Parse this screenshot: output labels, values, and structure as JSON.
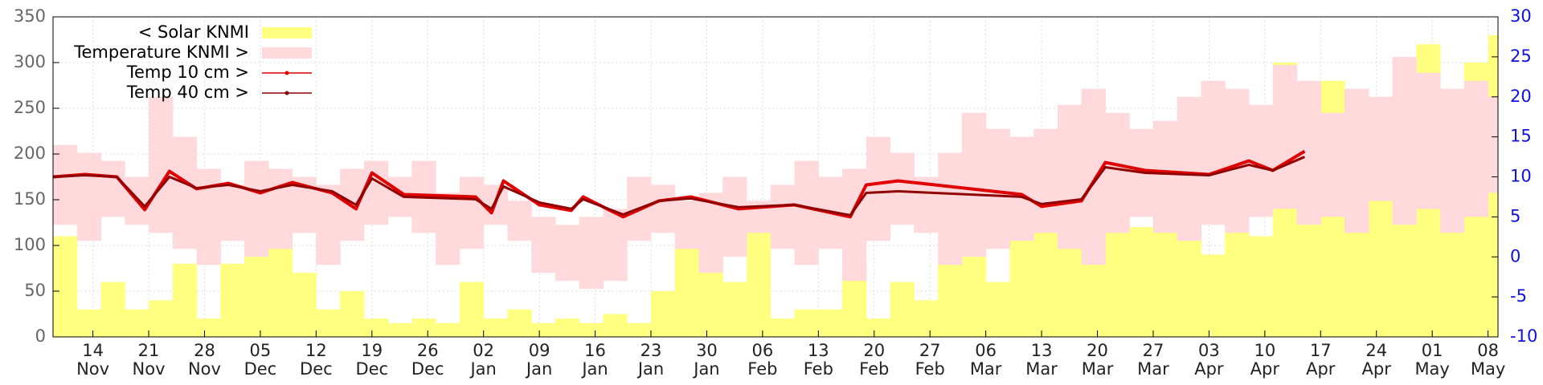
{
  "chart_data": {
    "type": "combo",
    "xlim": [
      -5,
      176.25
    ],
    "ylim": [
      0,
      350
    ],
    "yticks": [
      0,
      50,
      100,
      150,
      200,
      250,
      300,
      350
    ],
    "y2lim": [
      -10,
      30
    ],
    "y2ticks": [
      -10,
      -5,
      0,
      5,
      10,
      15,
      20,
      25,
      30
    ],
    "grid": true,
    "legend": "top-left",
    "xticks": [
      {
        "value": 0,
        "label": "14\nNov"
      },
      {
        "value": 7,
        "label": "21\nNov"
      },
      {
        "value": 14,
        "label": "28\nNov"
      },
      {
        "value": 21,
        "label": "05\nDec"
      },
      {
        "value": 28,
        "label": "12\nDec"
      },
      {
        "value": 35,
        "label": "19\nDec"
      },
      {
        "value": 42,
        "label": "26\nDec"
      },
      {
        "value": 49,
        "label": "02\nJan"
      },
      {
        "value": 56,
        "label": "09\nJan"
      },
      {
        "value": 63,
        "label": "16\nJan"
      },
      {
        "value": 70,
        "label": "23\nJan"
      },
      {
        "value": 77,
        "label": "30\nJan"
      },
      {
        "value": 84,
        "label": "06\nFeb"
      },
      {
        "value": 91,
        "label": "13\nFeb"
      },
      {
        "value": 98,
        "label": "20\nFeb"
      },
      {
        "value": 105,
        "label": "27\nFeb"
      },
      {
        "value": 112,
        "label": "06\nMar"
      },
      {
        "value": 119,
        "label": "13\nMar"
      },
      {
        "value": 126,
        "label": "20\nMar"
      },
      {
        "value": 133,
        "label": "27\nMar"
      },
      {
        "value": 140,
        "label": "03\nApr"
      },
      {
        "value": 147,
        "label": "10\nApr"
      },
      {
        "value": 154,
        "label": "17\nApr"
      },
      {
        "value": 161,
        "label": "24\nApr"
      },
      {
        "value": 168,
        "label": "01\nMay"
      },
      {
        "value": 175,
        "label": "08\nMay"
      }
    ],
    "series": [
      {
        "name": "< Solar KNMI",
        "type": "bar",
        "color": "#ffff80",
        "x": [
          -5,
          -2,
          1,
          4,
          7,
          10,
          13,
          16,
          19,
          22,
          25,
          28,
          31,
          34,
          37,
          40,
          43,
          46,
          49,
          52,
          55,
          58,
          61,
          64,
          67,
          70,
          73,
          76,
          79,
          82,
          85,
          88,
          91,
          94,
          97,
          100,
          103,
          106,
          109,
          112,
          115,
          118,
          121,
          124,
          127,
          130,
          133,
          136,
          139,
          142,
          145,
          148,
          151,
          154,
          157,
          160,
          163,
          166,
          169,
          172,
          175
        ],
        "values": [
          110,
          30,
          60,
          30,
          40,
          80,
          20,
          80,
          90,
          100,
          70,
          30,
          50,
          20,
          15,
          20,
          15,
          60,
          20,
          30,
          15,
          20,
          15,
          25,
          15,
          50,
          100,
          90,
          60,
          130,
          20,
          30,
          30,
          80,
          20,
          60,
          40,
          130,
          100,
          60,
          140,
          150,
          120,
          170,
          180,
          120,
          200,
          150,
          90,
          250,
          110,
          300,
          140,
          280,
          240,
          260,
          240,
          320,
          150,
          300,
          330
        ]
      },
      {
        "name": "Temperature KNMI >",
        "type": "band",
        "color": "#ffd9dc",
        "axis": "y2",
        "x": [
          -5,
          -2,
          1,
          4,
          7,
          10,
          13,
          16,
          19,
          22,
          25,
          28,
          31,
          34,
          37,
          40,
          43,
          46,
          49,
          52,
          55,
          58,
          61,
          64,
          67,
          70,
          73,
          76,
          79,
          82,
          85,
          88,
          91,
          94,
          97,
          100,
          103,
          106,
          109,
          112,
          115,
          118,
          121,
          124,
          127,
          130,
          133,
          136,
          139,
          142,
          145,
          148,
          151,
          154,
          157,
          160,
          163,
          166,
          169,
          172,
          175
        ],
        "low": [
          4,
          2,
          5,
          4,
          3,
          1,
          -1,
          2,
          0,
          1,
          3,
          -1,
          2,
          4,
          5,
          3,
          -1,
          1,
          4,
          2,
          -2,
          -3,
          -4,
          -3,
          2,
          3,
          1,
          -2,
          0,
          3,
          1,
          -1,
          1,
          -3,
          2,
          4,
          3,
          -1,
          0,
          1,
          2,
          3,
          1,
          -1,
          3,
          5,
          3,
          2,
          4,
          3,
          5,
          6,
          4,
          5,
          3,
          7,
          4,
          6,
          3,
          5,
          8
        ],
        "high": [
          14,
          13,
          12,
          10,
          20,
          15,
          11,
          9,
          12,
          11,
          10,
          9,
          11,
          12,
          10,
          12,
          8,
          10,
          9,
          7,
          5,
          4,
          5,
          6,
          10,
          9,
          7,
          8,
          10,
          7,
          9,
          12,
          10,
          11,
          15,
          13,
          10,
          13,
          18,
          16,
          15,
          16,
          19,
          21,
          18,
          16,
          17,
          20,
          22,
          21,
          19,
          24,
          22,
          18,
          21,
          20,
          25,
          23,
          21,
          22,
          20
        ]
      },
      {
        "name": "Temp 10 cm >",
        "type": "line",
        "color": "#e00000",
        "axis": "y2",
        "x": [
          -5,
          -1,
          3,
          6.5,
          9.6,
          13,
          17,
          21,
          25,
          30,
          33,
          35,
          39,
          48,
          50,
          51.5,
          56,
          60,
          61.5,
          66.5,
          71,
          75,
          81,
          88,
          95,
          97,
          101,
          116.5,
          119,
          124,
          127,
          132,
          140,
          145,
          148,
          152
        ],
        "values": [
          10,
          10.3,
          10,
          5.9,
          10.7,
          8.5,
          9.2,
          8,
          9.3,
          8,
          6,
          10.5,
          7.8,
          7.5,
          5.5,
          9.5,
          6.5,
          5.8,
          7.5,
          5,
          7,
          7.5,
          6,
          6.5,
          5,
          9,
          9.5,
          7.8,
          6.3,
          7,
          11.8,
          10.8,
          10.3,
          12,
          10.8,
          13.2
        ]
      },
      {
        "name": "Temp 40 cm >",
        "type": "line",
        "color": "#900000",
        "axis": "y2",
        "x": [
          -5,
          -1,
          3,
          6.5,
          9.6,
          13,
          17,
          21,
          25,
          30,
          33,
          35,
          39,
          48,
          50,
          51.5,
          56,
          60,
          61.5,
          66.5,
          71,
          75,
          81,
          88,
          95,
          97,
          101,
          116.5,
          119,
          124,
          127,
          132,
          140,
          145,
          148,
          152
        ],
        "values": [
          10,
          10.2,
          10,
          6.3,
          10,
          8.6,
          9,
          8.2,
          9,
          8.2,
          6.5,
          9.8,
          7.5,
          7.2,
          6,
          8.8,
          6.8,
          6,
          7.2,
          5.3,
          7,
          7.3,
          6.2,
          6.5,
          5.2,
          8,
          8.2,
          7.5,
          6.6,
          7.2,
          11.2,
          10.5,
          10.2,
          11.5,
          10.8,
          12.5
        ]
      }
    ]
  }
}
